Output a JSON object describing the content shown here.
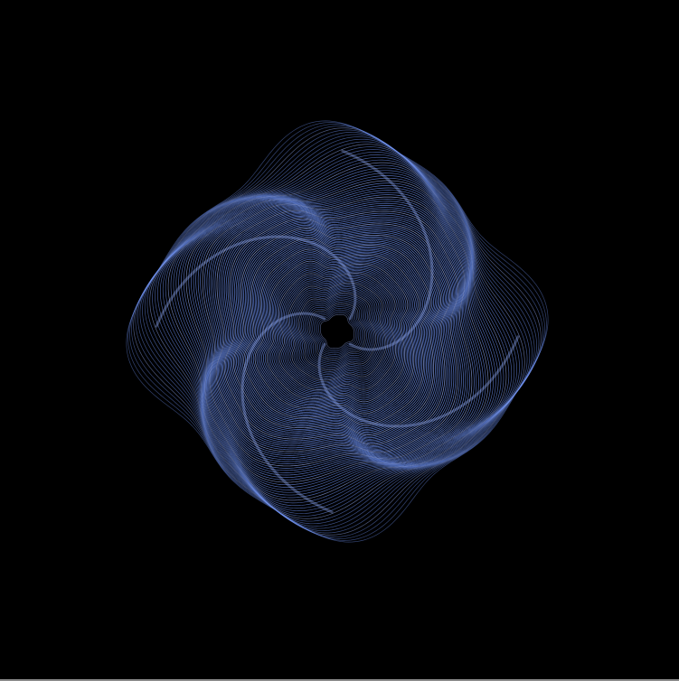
{
  "artwork": {
    "subject": "swirl-rose-line-art",
    "colors": {
      "background": "#000000",
      "stroke": "#6f93f5",
      "highlight": "#9bb4ff",
      "bottom_strip": "#8a8a8a"
    }
  }
}
